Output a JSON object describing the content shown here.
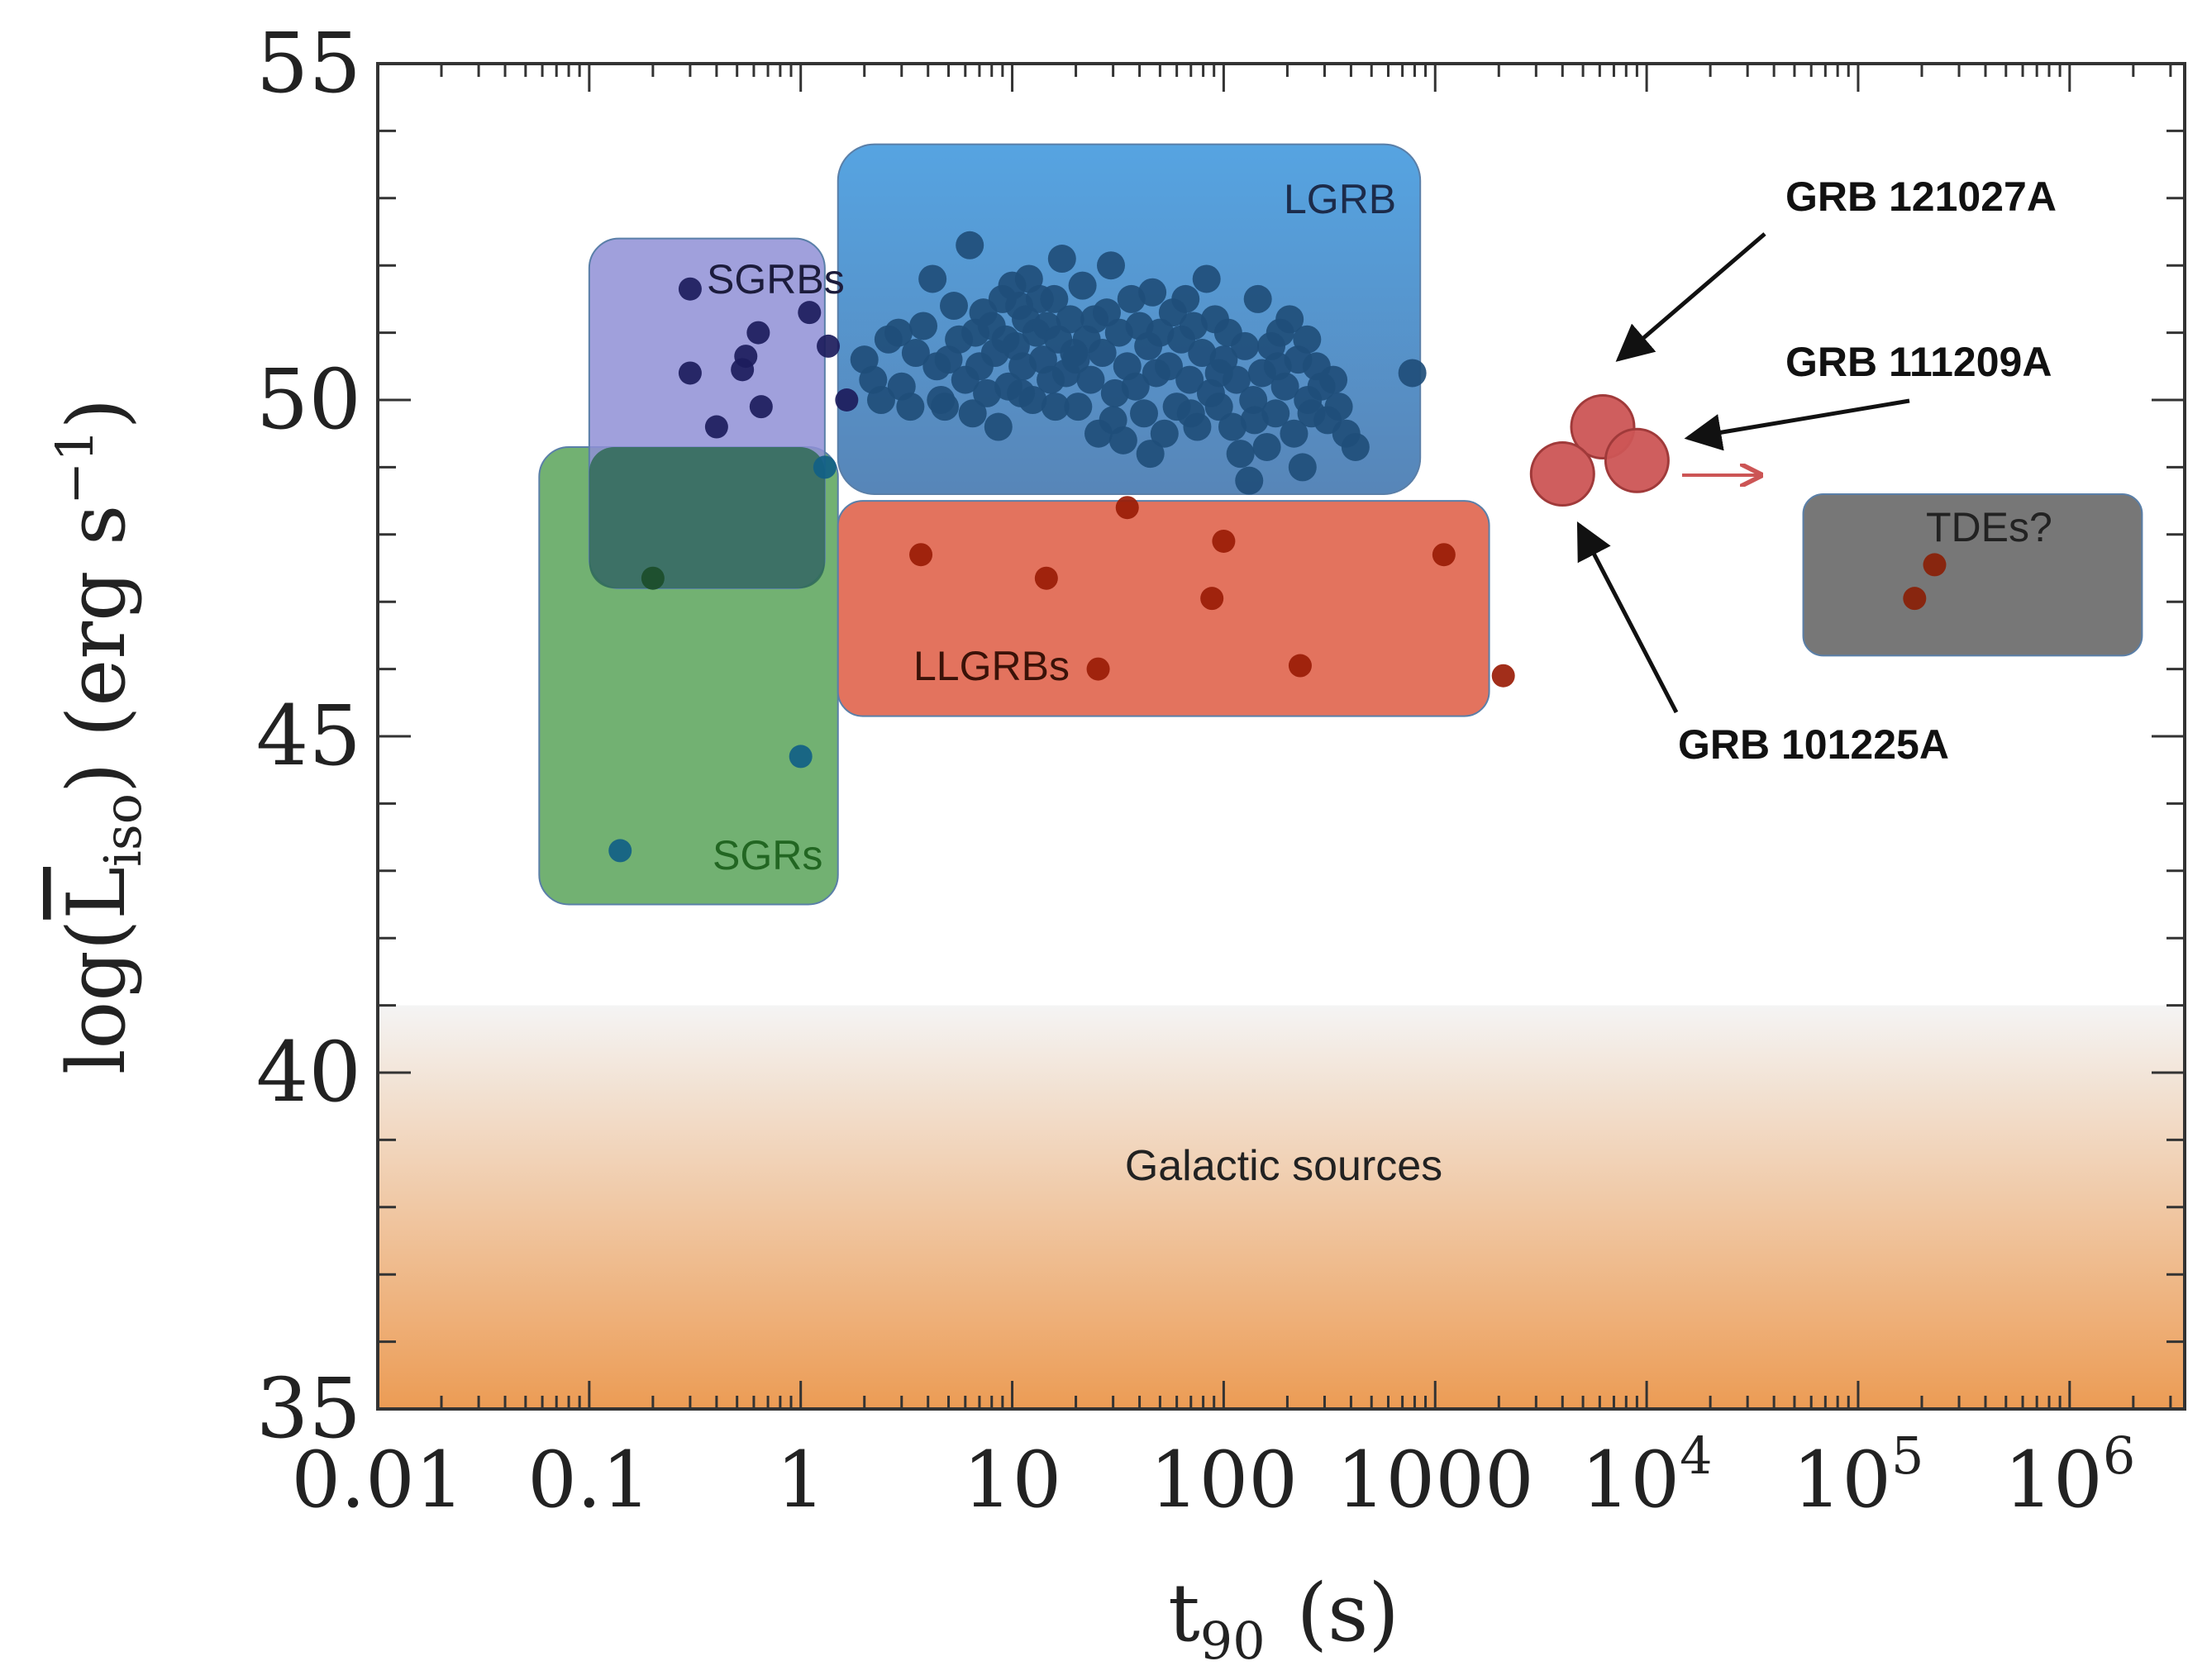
{
  "colors": {
    "frame": "#333333",
    "sgrb_region": "#8f8fd6",
    "lgrb_region": "#4d9bd9",
    "llgrb_region": "#e26b55",
    "sgr_region": "#63a963",
    "tde_region": "#707070",
    "galactic_top": "#f4f4f4",
    "galactic_bottom": "#ec9c55",
    "sgrb_dot": "#1c1c5c",
    "lgrb_dot": "#1f4e7a",
    "llgrb_dot": "#9a1c06",
    "sgr_dot": "#115f86",
    "grb_special": "#cc5555",
    "sgr_label": "#226622"
  },
  "chart_data": {
    "type": "scatter",
    "xlabel_main": "t",
    "xlabel_sub": "90",
    "xlabel_unit": "(s)",
    "ylabel_main": "log(",
    "ylabel_sym": "L",
    "ylabel_sub": "iso",
    "ylabel_unit": ") (erg s",
    "ylabel_exp": "−1",
    "ylabel_close": ")",
    "x_scale": "log",
    "xlim": [
      0.01,
      3500000
    ],
    "ylim": [
      35,
      55
    ],
    "x_ticks": [
      {
        "value": 0.01,
        "base": "0.01",
        "exp": ""
      },
      {
        "value": 0.1,
        "base": "0.1",
        "exp": ""
      },
      {
        "value": 1,
        "base": "1",
        "exp": ""
      },
      {
        "value": 10,
        "base": "10",
        "exp": ""
      },
      {
        "value": 100,
        "base": "100",
        "exp": ""
      },
      {
        "value": 1000,
        "base": "1000",
        "exp": ""
      },
      {
        "value": 10000,
        "base": "10",
        "exp": "4"
      },
      {
        "value": 100000,
        "base": "10",
        "exp": "5"
      },
      {
        "value": 1000000,
        "base": "10",
        "exp": "6"
      }
    ],
    "y_ticks": [
      "35",
      "40",
      "45",
      "50",
      "55"
    ],
    "regions": [
      {
        "name": "Galactic sources",
        "x": [
          0.01,
          3500000
        ],
        "y": [
          35,
          41
        ],
        "color": "gradient"
      },
      {
        "name": "SGRs",
        "x": [
          0.058,
          1.5
        ],
        "y": [
          42.5,
          49.3
        ],
        "color": "sgr_region"
      },
      {
        "name": "SGRBs",
        "x": [
          0.1,
          1.3
        ],
        "y": [
          47.2,
          52.4
        ],
        "color": "sgrb_region"
      },
      {
        "name": "LGRB",
        "x": [
          1.5,
          850
        ],
        "y": [
          48.6,
          53.8
        ],
        "color": "lgrb_region"
      },
      {
        "name": "LLGRBs",
        "x": [
          1.5,
          1800
        ],
        "y": [
          45.3,
          48.5
        ],
        "color": "llgrb_region"
      },
      {
        "name": "TDEs?",
        "x": [
          55000,
          2200000
        ],
        "y": [
          46.2,
          48.6
        ],
        "color": "tde_region"
      }
    ],
    "series": [
      {
        "name": "SGRBs",
        "points": [
          [
            0.3,
            51.65
          ],
          [
            0.3,
            50.4
          ],
          [
            0.4,
            49.6
          ],
          [
            0.53,
            50.45
          ],
          [
            0.63,
            51.0
          ],
          [
            0.65,
            49.9
          ],
          [
            1.1,
            51.3
          ],
          [
            1.35,
            50.8
          ],
          [
            1.65,
            50.0
          ],
          [
            0.55,
            50.65
          ]
        ]
      },
      {
        "name": "LGRB",
        "points": [
          [
            2.0,
            50.6
          ],
          [
            2.2,
            50.3
          ],
          [
            2.4,
            50.0
          ],
          [
            2.6,
            50.9
          ],
          [
            2.9,
            51.0
          ],
          [
            3.0,
            50.2
          ],
          [
            3.3,
            49.9
          ],
          [
            3.5,
            50.7
          ],
          [
            3.8,
            51.1
          ],
          [
            4.2,
            51.8
          ],
          [
            4.4,
            50.5
          ],
          [
            4.6,
            50.0
          ],
          [
            4.8,
            49.9
          ],
          [
            5.0,
            50.6
          ],
          [
            5.3,
            51.4
          ],
          [
            5.6,
            50.9
          ],
          [
            6.0,
            50.3
          ],
          [
            6.3,
            52.3
          ],
          [
            6.5,
            49.8
          ],
          [
            6.7,
            51.0
          ],
          [
            7.0,
            50.5
          ],
          [
            7.3,
            51.3
          ],
          [
            7.6,
            50.1
          ],
          [
            8.0,
            51.1
          ],
          [
            8.3,
            50.7
          ],
          [
            8.6,
            49.6
          ],
          [
            9.0,
            51.5
          ],
          [
            9.3,
            50.9
          ],
          [
            9.6,
            50.2
          ],
          [
            10,
            51.7
          ],
          [
            10.4,
            50.8
          ],
          [
            10.8,
            51.4
          ],
          [
            11.2,
            50.5
          ],
          [
            11.6,
            51.2
          ],
          [
            12.0,
            51.8
          ],
          [
            12.5,
            50.0
          ],
          [
            13.0,
            51.0
          ],
          [
            13.5,
            51.5
          ],
          [
            14.0,
            50.6
          ],
          [
            14.6,
            51.1
          ],
          [
            15.2,
            50.3
          ],
          [
            15.8,
            51.5
          ],
          [
            16.5,
            50.9
          ],
          [
            17.2,
            52.1
          ],
          [
            18.0,
            50.4
          ],
          [
            18.8,
            51.2
          ],
          [
            19.6,
            50.7
          ],
          [
            20.5,
            49.9
          ],
          [
            21.5,
            51.7
          ],
          [
            22.5,
            50.9
          ],
          [
            23.5,
            50.3
          ],
          [
            24.5,
            51.2
          ],
          [
            25.6,
            49.5
          ],
          [
            26.7,
            50.7
          ],
          [
            28.0,
            51.3
          ],
          [
            29.3,
            52.0
          ],
          [
            30.6,
            50.1
          ],
          [
            32.0,
            51.0
          ],
          [
            33.5,
            49.4
          ],
          [
            35.0,
            50.5
          ],
          [
            36.6,
            51.5
          ],
          [
            38.3,
            50.2
          ],
          [
            40.0,
            51.1
          ],
          [
            42.0,
            49.8
          ],
          [
            44.0,
            50.8
          ],
          [
            46.0,
            51.6
          ],
          [
            48.0,
            50.4
          ],
          [
            50.0,
            51.0
          ],
          [
            52.5,
            49.5
          ],
          [
            55.0,
            50.5
          ],
          [
            57.5,
            51.3
          ],
          [
            60.0,
            49.9
          ],
          [
            63.0,
            50.9
          ],
          [
            66.0,
            51.5
          ],
          [
            69.0,
            50.3
          ],
          [
            72.0,
            51.1
          ],
          [
            75.0,
            49.6
          ],
          [
            79.0,
            50.7
          ],
          [
            83.0,
            51.8
          ],
          [
            87.0,
            50.1
          ],
          [
            91.0,
            51.2
          ],
          [
            95.0,
            49.9
          ],
          [
            100,
            50.6
          ],
          [
            105,
            51.0
          ],
          [
            110,
            49.6
          ],
          [
            115,
            50.3
          ],
          [
            120,
            49.2
          ],
          [
            126,
            50.8
          ],
          [
            132,
            48.8
          ],
          [
            138,
            50.0
          ],
          [
            145,
            51.5
          ],
          [
            152,
            50.4
          ],
          [
            160,
            49.3
          ],
          [
            168,
            50.8
          ],
          [
            176,
            49.8
          ],
          [
            185,
            51.0
          ],
          [
            195,
            50.2
          ],
          [
            205,
            51.2
          ],
          [
            215,
            49.5
          ],
          [
            225,
            50.6
          ],
          [
            236,
            49.0
          ],
          [
            248,
            50.9
          ],
          [
            260,
            49.8
          ],
          [
            275,
            50.5
          ],
          [
            290,
            50.2
          ],
          [
            310,
            49.7
          ],
          [
            330,
            50.3
          ],
          [
            350,
            49.9
          ],
          [
            380,
            49.5
          ],
          [
            420,
            49.3
          ],
          [
            250,
            50.0
          ],
          [
            180,
            50.5
          ],
          [
            140,
            49.7
          ],
          [
            95,
            50.4
          ],
          [
            70,
            49.8
          ],
          [
            45,
            49.2
          ],
          [
            30,
            49.7
          ],
          [
            20,
            50.6
          ],
          [
            16,
            49.9
          ],
          [
            11,
            50.1
          ],
          [
            780,
            50.4
          ]
        ]
      },
      {
        "name": "LLGRBs",
        "points": [
          [
            3.7,
            47.7
          ],
          [
            14.5,
            47.35
          ],
          [
            25.5,
            46.0
          ],
          [
            35.0,
            48.4
          ],
          [
            88.0,
            47.05
          ],
          [
            100,
            47.9
          ],
          [
            230,
            46.05
          ],
          [
            1100,
            47.7
          ],
          [
            2100,
            45.9
          ]
        ]
      },
      {
        "name": "SGRs",
        "points": [
          [
            0.2,
            47.35
          ],
          [
            1.3,
            49.0
          ],
          [
            1.0,
            44.7
          ],
          [
            0.14,
            43.3
          ]
        ]
      },
      {
        "name": "TDEs?",
        "points": [
          [
            185000,
            47.05
          ],
          [
            230000,
            47.55
          ]
        ]
      },
      {
        "name": "GRB 121027A",
        "points": [
          [
            6200,
            49.6
          ]
        ]
      },
      {
        "name": "GRB 111209A",
        "points": [
          [
            9000,
            49.1
          ]
        ]
      },
      {
        "name": "GRB 101225A",
        "points": [
          [
            4000,
            48.9
          ]
        ]
      }
    ],
    "annotations": [
      {
        "text": "GRB 121027A"
      },
      {
        "text": "GRB 111209A"
      },
      {
        "text": "GRB 101225A"
      }
    ]
  }
}
